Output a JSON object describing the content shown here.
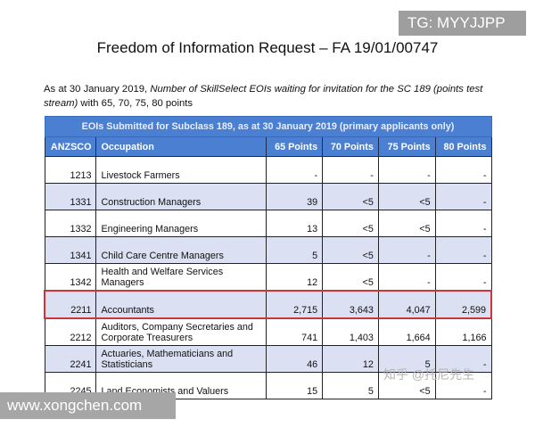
{
  "title": "Freedom of Information Request – FA 19/01/00747",
  "intro": {
    "prefix": "As at 30 January 2019, ",
    "italic": "Number of  SkillSelect EOIs waiting for invitation for the SC 189 (points test stream)",
    "suffix": " with 65, 70, 75, 80 points"
  },
  "table": {
    "caption": "EOIs Submitted for Subclass 189, as at 30 January 2019 (primary applicants only)",
    "headers": [
      "ANZSCO",
      "Occupation",
      "65 Points",
      "70 Points",
      "75 Points",
      "80 Points"
    ],
    "rows": [
      [
        "1213",
        "Livestock Farmers",
        "-",
        "-",
        "-",
        "-"
      ],
      [
        "1331",
        "Construction Managers",
        "39",
        "<5",
        "<5",
        "-"
      ],
      [
        "1332",
        "Engineering Managers",
        "13",
        "<5",
        "<5",
        "-"
      ],
      [
        "1341",
        "Child Care Centre Managers",
        "5",
        "<5",
        "-",
        "-"
      ],
      [
        "1342",
        "Health and Welfare Services Managers",
        "12",
        "<5",
        "-",
        "-"
      ],
      [
        "2211",
        "Accountants",
        "2,715",
        "3,643",
        "4,047",
        "2,599"
      ],
      [
        "2212",
        "Auditors, Company Secretaries and Corporate Treasurers",
        "741",
        "1,403",
        "1,664",
        "1,166"
      ],
      [
        "2241",
        "Actuaries, Mathematicians and Statisticians",
        "46",
        "12",
        "5",
        "-"
      ],
      [
        "2245",
        "Land Economists and Valuers",
        "15",
        "5",
        "<5",
        "-"
      ]
    ],
    "highlighted_row": "2211",
    "highlight_color": "#c9363c",
    "header_color": "#4a7fd1",
    "shade_color": "#dbe1f2"
  },
  "watermarks": {
    "tg": "TG: MYYJJPP",
    "site": "www.xongchen.com",
    "zhihu": "知乎 @托尼先生"
  }
}
